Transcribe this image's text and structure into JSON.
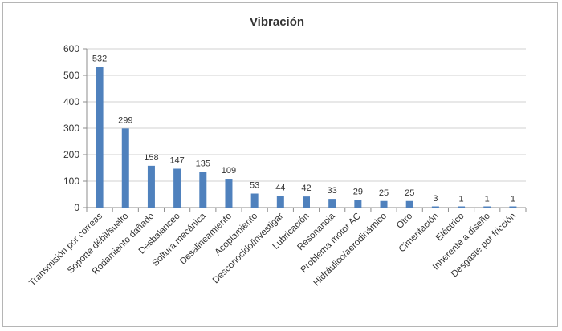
{
  "chart_data": {
    "type": "bar",
    "title": "Vibración",
    "xlabel": "",
    "ylabel": "",
    "ylim": [
      0,
      600
    ],
    "yticks": [
      0,
      100,
      200,
      300,
      400,
      500,
      600
    ],
    "grid": true,
    "legend": "none",
    "bar_color": "#4f81bd",
    "categories": [
      "Transmisión por correas",
      "Soporte débil/suelto",
      "Rodamiento dañado",
      "Desbalanceo",
      "Soltura mecánica",
      "Desalineamiento",
      "Acoplamiento",
      "Desconocido/investigar",
      "Lubricación",
      "Resonancia",
      "Problema motor AC",
      "Hidráulico/aerodinámico",
      "Otro",
      "Cimentación",
      "Eléctrico",
      "Inherente a diseño",
      "Desgaste por fricción"
    ],
    "values": [
      532,
      299,
      158,
      147,
      135,
      109,
      53,
      44,
      42,
      33,
      29,
      25,
      25,
      3,
      1,
      1,
      1
    ]
  }
}
